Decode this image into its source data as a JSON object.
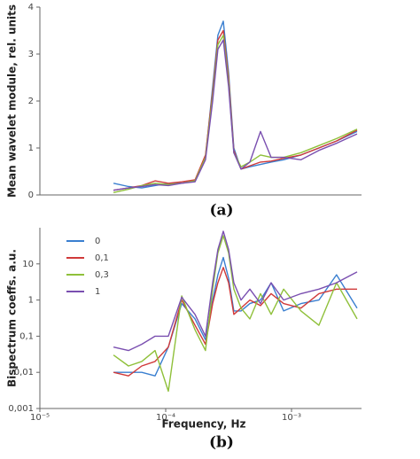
{
  "chart_data": [
    {
      "type": "line",
      "caption": "(a)",
      "ylabel": "Mean wavelet module, rel. units",
      "log_x": true,
      "xlim": [
        1e-05,
        0.0036
      ],
      "ylim": [
        0,
        4
      ],
      "yticks": [
        0,
        1,
        2,
        3,
        4
      ],
      "x": [
        3.85e-05,
        5.06e-05,
        6.45e-05,
        8.23e-05,
        0.000105,
        0.000134,
        0.000171,
        0.000207,
        0.000236,
        0.00026,
        0.000287,
        0.000316,
        0.000348,
        0.000397,
        0.000467,
        0.000567,
        0.000689,
        0.000865,
        0.00119,
        0.00165,
        0.00228,
        0.00332
      ],
      "series": [
        {
          "color": "#3a7fd0",
          "values": [
            0.25,
            0.18,
            0.15,
            0.2,
            0.25,
            0.25,
            0.3,
            0.8,
            2.3,
            3.4,
            3.7,
            2.6,
            1.0,
            0.55,
            0.6,
            0.65,
            0.7,
            0.75,
            0.85,
            1.0,
            1.15,
            1.35
          ]
        },
        {
          "color": "#d03a3a",
          "values": [
            0.1,
            0.15,
            0.2,
            0.3,
            0.25,
            0.28,
            0.32,
            0.85,
            2.2,
            3.3,
            3.5,
            2.5,
            0.95,
            0.55,
            0.62,
            0.7,
            0.72,
            0.78,
            0.85,
            1.0,
            1.15,
            1.38
          ]
        },
        {
          "color": "#8fc03a",
          "values": [
            0.05,
            0.12,
            0.2,
            0.25,
            0.22,
            0.25,
            0.3,
            0.8,
            2.1,
            3.2,
            3.4,
            2.4,
            0.9,
            0.6,
            0.7,
            0.85,
            0.8,
            0.8,
            0.9,
            1.05,
            1.2,
            1.4
          ]
        },
        {
          "color": "#7a4fb0",
          "values": [
            0.1,
            0.15,
            0.18,
            0.22,
            0.2,
            0.25,
            0.28,
            0.75,
            2.0,
            3.1,
            3.3,
            2.3,
            0.9,
            0.55,
            0.7,
            1.35,
            0.8,
            0.8,
            0.75,
            0.95,
            1.1,
            1.3
          ]
        }
      ]
    },
    {
      "type": "line",
      "caption": "(b)",
      "ylabel": "Bispectrum coeffs. a.u.",
      "xlabel": "Frequency, Hz",
      "log_x": true,
      "log_y": true,
      "legend": "upper left",
      "xlim": [
        1e-05,
        0.0036
      ],
      "xticks": [
        {
          "value": 1e-05,
          "label": "10⁻⁵"
        },
        {
          "value": 0.0001,
          "label": "10⁻⁴"
        },
        {
          "value": 0.001,
          "label": "10⁻³"
        }
      ],
      "ylim": [
        0.001,
        100
      ],
      "yticks": [
        {
          "value": 0.001,
          "label": "0,001"
        },
        {
          "value": 0.01,
          "label": "0,01"
        },
        {
          "value": 0.1,
          "label": "0,1"
        },
        1,
        10
      ],
      "x": [
        3.85e-05,
        5.06e-05,
        6.45e-05,
        8.23e-05,
        0.000105,
        0.000134,
        0.000171,
        0.000207,
        0.000236,
        0.00026,
        0.000287,
        0.000316,
        0.000348,
        0.000397,
        0.000467,
        0.000567,
        0.000689,
        0.000865,
        0.00119,
        0.00165,
        0.00228,
        0.00332
      ],
      "series": [
        {
          "name": "0",
          "color": "#3a7fd0",
          "values": [
            0.01,
            0.01,
            0.01,
            0.008,
            0.05,
            0.8,
            0.3,
            0.08,
            1,
            5,
            15,
            4,
            0.5,
            0.5,
            0.8,
            1,
            3,
            0.5,
            0.8,
            1,
            5,
            0.6
          ]
        },
        {
          "name": "0,1",
          "color": "#d03a3a",
          "values": [
            0.01,
            0.008,
            0.015,
            0.02,
            0.05,
            1,
            0.2,
            0.06,
            0.8,
            3,
            8,
            3,
            0.4,
            0.6,
            1,
            0.7,
            1.5,
            0.8,
            0.6,
            1.5,
            2,
            2
          ]
        },
        {
          "name": "0,3",
          "color": "#8fc03a",
          "values": [
            0.03,
            0.015,
            0.02,
            0.04,
            0.003,
            1.3,
            0.15,
            0.04,
            2,
            20,
            60,
            20,
            2,
            0.6,
            0.3,
            1.5,
            0.4,
            2,
            0.5,
            0.2,
            3,
            0.3
          ]
        },
        {
          "name": "1",
          "color": "#7a4fb0",
          "values": [
            0.05,
            0.04,
            0.06,
            0.1,
            0.1,
            1.2,
            0.4,
            0.1,
            3,
            25,
            80,
            25,
            3,
            1,
            2,
            0.8,
            3,
            1,
            1.5,
            2,
            3,
            6
          ]
        }
      ]
    }
  ]
}
